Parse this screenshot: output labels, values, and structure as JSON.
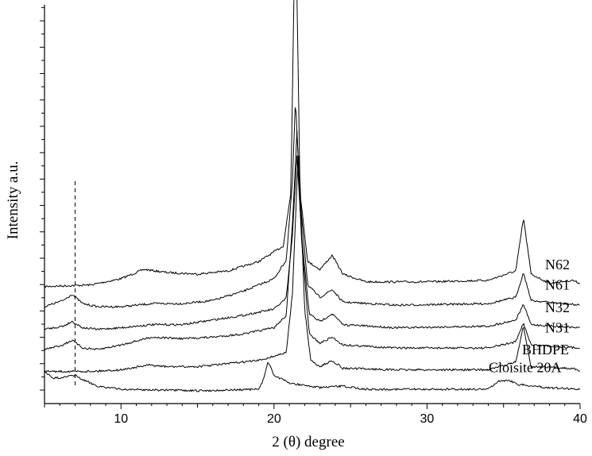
{
  "chart_data": {
    "type": "line",
    "xlabel": "2 (θ) degree",
    "ylabel": "Intensity a.u.",
    "xlim": [
      5,
      40
    ],
    "x_ticks": [
      10,
      20,
      30,
      40
    ],
    "y_ticks_labeled": false,
    "grid": false,
    "legend": "none",
    "reference_line": {
      "x": 7,
      "style": "dashed"
    },
    "series": [
      {
        "name": "N62",
        "baseline": 6.6,
        "points": [
          [
            5,
            0
          ],
          [
            8,
            0.1
          ],
          [
            10,
            0.5
          ],
          [
            11.5,
            1.1
          ],
          [
            13,
            0.9
          ],
          [
            15,
            0.8
          ],
          [
            17,
            1.0
          ],
          [
            19,
            1.6
          ],
          [
            20.6,
            2.6
          ],
          [
            21.1,
            6
          ],
          [
            21.4,
            25
          ],
          [
            21.7,
            6
          ],
          [
            22.2,
            1.6
          ],
          [
            23,
            1.1
          ],
          [
            23.8,
            2.0
          ],
          [
            24.5,
            0.8
          ],
          [
            26,
            0.3
          ],
          [
            30,
            0.3
          ],
          [
            34,
            0.4
          ],
          [
            35.8,
            1.0
          ],
          [
            36.3,
            4.4
          ],
          [
            36.8,
            0.8
          ],
          [
            38,
            0.2
          ],
          [
            39.5,
            0.4
          ],
          [
            40,
            0.2
          ]
        ]
      },
      {
        "name": "N61",
        "baseline": 5.3,
        "points": [
          [
            5,
            0
          ],
          [
            6.2,
            0.4
          ],
          [
            6.8,
            0.8
          ],
          [
            7.5,
            0.2
          ],
          [
            8.5,
            0
          ],
          [
            10,
            0
          ],
          [
            12,
            0.2
          ],
          [
            14,
            0.2
          ],
          [
            16,
            0.4
          ],
          [
            18,
            1.0
          ],
          [
            20,
            1.8
          ],
          [
            20.8,
            3.0
          ],
          [
            21.2,
            8
          ],
          [
            21.4,
            13.3
          ],
          [
            21.7,
            7
          ],
          [
            22.2,
            1.4
          ],
          [
            23,
            0.6
          ],
          [
            23.8,
            1.1
          ],
          [
            24.5,
            0.3
          ],
          [
            28,
            0.1
          ],
          [
            34,
            0.2
          ],
          [
            35.8,
            0.6
          ],
          [
            36.3,
            2.2
          ],
          [
            36.8,
            0.4
          ],
          [
            40,
            0.1
          ]
        ]
      },
      {
        "name": "N32",
        "baseline": 3.85,
        "points": [
          [
            5,
            0
          ],
          [
            6.2,
            0.2
          ],
          [
            6.8,
            0.5
          ],
          [
            7.5,
            0.1
          ],
          [
            8.5,
            0
          ],
          [
            10,
            0.1
          ],
          [
            12,
            0.3
          ],
          [
            14,
            0.3
          ],
          [
            16,
            0.6
          ],
          [
            18,
            0.9
          ],
          [
            20,
            1.3
          ],
          [
            20.8,
            2.0
          ],
          [
            21.2,
            6
          ],
          [
            21.5,
            11.2
          ],
          [
            21.8,
            6
          ],
          [
            22.3,
            1.0
          ],
          [
            23,
            0.5
          ],
          [
            23.8,
            1.0
          ],
          [
            24.5,
            0.3
          ],
          [
            28,
            0.1
          ],
          [
            34,
            0.2
          ],
          [
            35.8,
            0.6
          ],
          [
            36.3,
            1.6
          ],
          [
            36.8,
            0.3
          ],
          [
            40,
            0.1
          ]
        ]
      },
      {
        "name": "N31",
        "baseline": 2.55,
        "points": [
          [
            5,
            0
          ],
          [
            6.2,
            0.3
          ],
          [
            6.8,
            0.6
          ],
          [
            7.5,
            0.1
          ],
          [
            8.5,
            0
          ],
          [
            10,
            0.3
          ],
          [
            12,
            0.8
          ],
          [
            14,
            0.7
          ],
          [
            16,
            0.8
          ],
          [
            18,
            1.0
          ],
          [
            20,
            1.4
          ],
          [
            20.8,
            2.2
          ],
          [
            21.2,
            8
          ],
          [
            21.5,
            14
          ],
          [
            21.8,
            7
          ],
          [
            22.3,
            1.0
          ],
          [
            23,
            0.4
          ],
          [
            23.8,
            0.8
          ],
          [
            24.5,
            0.3
          ],
          [
            28,
            0.1
          ],
          [
            34,
            0.1
          ],
          [
            35.8,
            0.5
          ],
          [
            36.3,
            1.7
          ],
          [
            36.8,
            0.3
          ],
          [
            40,
            0.1
          ]
        ]
      },
      {
        "name": "BHDPE",
        "baseline": 1.15,
        "points": [
          [
            5,
            0
          ],
          [
            8,
            0
          ],
          [
            10,
            0.1
          ],
          [
            11.8,
            0.4
          ],
          [
            13,
            0.3
          ],
          [
            15,
            0.3
          ],
          [
            17,
            0.5
          ],
          [
            19,
            0.7
          ],
          [
            20.8,
            1.2
          ],
          [
            21.2,
            5
          ],
          [
            21.6,
            14.4
          ],
          [
            22.0,
            4
          ],
          [
            22.4,
            0.7
          ],
          [
            23,
            0.3
          ],
          [
            23.8,
            0.7
          ],
          [
            24.5,
            0.2
          ],
          [
            28,
            0.1
          ],
          [
            34,
            0.1
          ],
          [
            35.8,
            0.6
          ],
          [
            36.3,
            2.9
          ],
          [
            36.8,
            0.3
          ],
          [
            39.5,
            0.2
          ],
          [
            40,
            0
          ]
        ]
      },
      {
        "name": "Cloisite 20A",
        "baseline": 0,
        "points": [
          [
            5,
            1.2
          ],
          [
            5.5,
            0.7
          ],
          [
            6.5,
            0.8
          ],
          [
            7,
            0.9
          ],
          [
            7.5,
            0.6
          ],
          [
            8.5,
            0.2
          ],
          [
            10,
            0
          ],
          [
            15,
            -0.1
          ],
          [
            19,
            0
          ],
          [
            19.3,
            0.6
          ],
          [
            19.6,
            1.8
          ],
          [
            20,
            0.9
          ],
          [
            21,
            0.4
          ],
          [
            23,
            0.1
          ],
          [
            24.5,
            0.2
          ],
          [
            26,
            0
          ],
          [
            30,
            0
          ],
          [
            34,
            0
          ],
          [
            34.6,
            0.5
          ],
          [
            35.3,
            0.6
          ],
          [
            36,
            0.3
          ],
          [
            38,
            0.1
          ],
          [
            40,
            0
          ]
        ]
      }
    ]
  }
}
